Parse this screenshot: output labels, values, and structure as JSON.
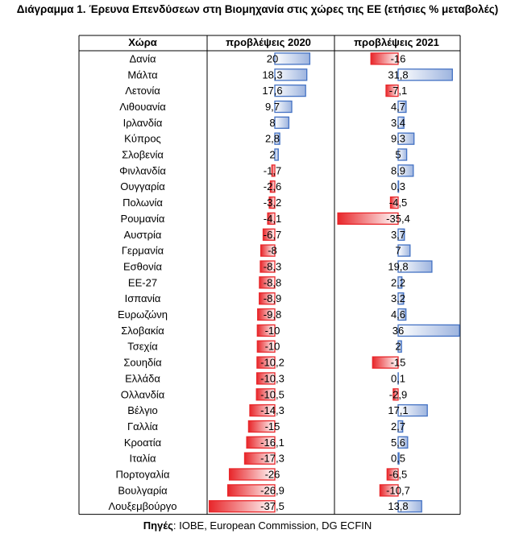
{
  "title": "Διάγραμμα 1. Έρευνα Επενδύσεων στη Βιομηχανία στις χώρες της ΕΕ (ετήσιες % μεταβολές)",
  "source": {
    "label": "Πηγές",
    "text": ": IOBE, European Commission, DG ECFIN"
  },
  "chart_data": {
    "type": "bar",
    "orientation": "horizontal",
    "headers": {
      "country": "Χώρα",
      "s2020": "προβλέψεις 2020",
      "s2021": "προβλέψεις 2021"
    },
    "categories": [
      "Δανία",
      "Μάλτα",
      "Λετονία",
      "Λιθουανία",
      "Ιρλανδία",
      "Κύπρος",
      "Σλοβενία",
      "Φινλανδία",
      "Ουγγαρία",
      "Πολωνία",
      "Ρουμανία",
      "Αυστρία",
      "Γερμανία",
      "Εσθονία",
      "ΕΕ-27",
      "Ισπανία",
      "Ευρωζώνη",
      "Σλοβακία",
      "Τσεχία",
      "Σουηδία",
      "Ελλάδα",
      "Ολλανδία",
      "Βέλγιο",
      "Γαλλία",
      "Κροατία",
      "Ιταλία",
      "Πορτογαλία",
      "Βουλγαρία",
      "Λουξεμβούργο"
    ],
    "series": [
      {
        "name": "προβλέψεις 2020",
        "values": [
          20,
          18.3,
          17.6,
          9.7,
          8,
          2.8,
          2,
          -1.7,
          -2.6,
          -3.2,
          -4.1,
          -6.7,
          -8,
          -8.3,
          -8.8,
          -8.9,
          -9.8,
          -10,
          -10,
          -10.2,
          -10.3,
          -10.5,
          -14.3,
          -15,
          -16.1,
          -17.3,
          -26,
          -26.9,
          -37.5
        ],
        "labels": [
          "20",
          "18,3",
          "17,6",
          "9,7",
          "8",
          "2,8",
          "2",
          "-1,7",
          "-2,6",
          "-3,2",
          "-4,1",
          "-6,7",
          "-8",
          "-8,3",
          "-8,8",
          "-8,9",
          "-9,8",
          "-10",
          "-10",
          "-10,2",
          "-10,3",
          "-10,5",
          "-14,3",
          "-15",
          "-16,1",
          "-17,3",
          "-26",
          "-26,9",
          "-37,5"
        ]
      },
      {
        "name": "προβλέψεις 2021",
        "values": [
          -16,
          31.8,
          -7.1,
          4.7,
          3.4,
          9.3,
          5,
          8.9,
          0.3,
          -4.5,
          -35.4,
          3.7,
          7,
          19.8,
          2.2,
          3.2,
          4.6,
          36,
          2,
          -15,
          0.1,
          -2.9,
          17.1,
          2.7,
          5.6,
          0.5,
          -6.5,
          -10.7,
          13.8
        ],
        "labels": [
          "-16",
          "31,8",
          "-7,1",
          "4,7",
          "3,4",
          "9,3",
          "5",
          "8,9",
          "0,3",
          "-4,5",
          "-35,4",
          "3,7",
          "7",
          "19,8",
          "2,2",
          "3,2",
          "4,6",
          "36",
          "2",
          "-15",
          "0,1",
          "-2,9",
          "17,1",
          "2,7",
          "5,6",
          "0,5",
          "-6,5",
          "-10,7",
          "13,8"
        ]
      }
    ],
    "colors": {
      "positive": "#4472c4",
      "negative": "#e8262a",
      "grid": "#000000"
    },
    "xlim_2020": [
      -37.5,
      20
    ],
    "xlim_2021": [
      -35.4,
      36
    ],
    "grid": true,
    "legend": "none"
  }
}
